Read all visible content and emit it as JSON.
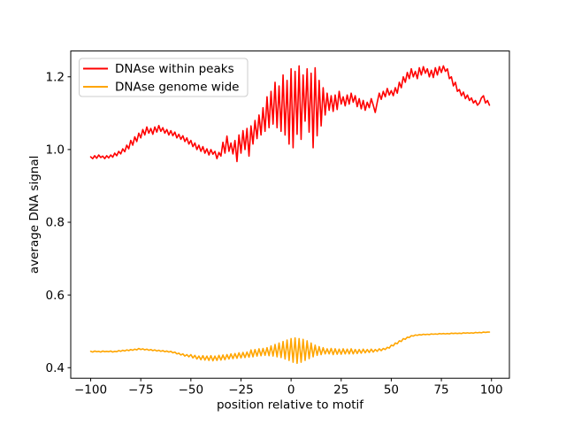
{
  "figure": {
    "background": "#ffffff"
  },
  "chart_data": {
    "type": "line",
    "title": "",
    "xlabel": "position relative to motif",
    "ylabel": "average DNA signal",
    "xlim": [
      -109.95,
      108.95
    ],
    "ylim": [
      0.371,
      1.271
    ],
    "grid": false,
    "xticks": [
      -100,
      -75,
      -50,
      -25,
      0,
      25,
      50,
      75,
      100
    ],
    "xtick_labels": [
      "−100",
      "−75",
      "−50",
      "−25",
      "0",
      "25",
      "50",
      "75",
      "100"
    ],
    "yticks": [
      0.4,
      0.6,
      0.8,
      1.0,
      1.2
    ],
    "ytick_labels": [
      "0.4",
      "0.6",
      "0.8",
      "1.0",
      "1.2"
    ],
    "legend": {
      "position": "upper-left",
      "border_color": "#cccccc",
      "background": "rgba(255,255,255,0.8)"
    },
    "x_start": -100,
    "x_step": 1,
    "series": [
      {
        "name": "DNAse within peaks",
        "color": "#ff0000",
        "values": [
          0.98,
          0.975,
          0.983,
          0.976,
          0.985,
          0.978,
          0.982,
          0.975,
          0.983,
          0.977,
          0.985,
          0.979,
          0.99,
          0.983,
          0.995,
          0.988,
          1.002,
          0.994,
          1.012,
          1.002,
          1.025,
          1.012,
          1.035,
          1.022,
          1.045,
          1.032,
          1.055,
          1.04,
          1.062,
          1.045,
          1.058,
          1.042,
          1.062,
          1.048,
          1.066,
          1.05,
          1.06,
          1.045,
          1.055,
          1.04,
          1.052,
          1.038,
          1.048,
          1.032,
          1.042,
          1.028,
          1.038,
          1.022,
          1.032,
          1.015,
          1.025,
          1.008,
          1.018,
          1.0,
          1.012,
          0.995,
          1.008,
          0.99,
          1.002,
          0.985,
          1.0,
          0.987,
          0.995,
          0.975,
          0.992,
          0.982,
          1.02,
          0.99,
          1.037,
          0.995,
          1.018,
          0.988,
          1.025,
          0.967,
          1.04,
          0.99,
          1.052,
          1.0,
          1.058,
          0.982,
          1.065,
          1.015,
          1.08,
          1.03,
          1.095,
          1.04,
          1.115,
          1.05,
          1.145,
          1.06,
          1.16,
          1.07,
          1.185,
          1.06,
          1.175,
          1.05,
          1.205,
          1.04,
          1.19,
          1.015,
          1.222,
          1.005,
          1.215,
          1.042,
          1.23,
          1.028,
          1.205,
          1.078,
          1.222,
          1.048,
          1.21,
          1.005,
          1.225,
          1.038,
          1.19,
          1.065,
          1.17,
          1.095,
          1.155,
          1.108,
          1.148,
          1.105,
          1.15,
          1.11,
          1.16,
          1.125,
          1.145,
          1.12,
          1.15,
          1.125,
          1.155,
          1.13,
          1.148,
          1.118,
          1.14,
          1.112,
          1.135,
          1.108,
          1.13,
          1.115,
          1.14,
          1.122,
          1.102,
          1.13,
          1.155,
          1.138,
          1.16,
          1.145,
          1.168,
          1.15,
          1.162,
          1.148,
          1.17,
          1.155,
          1.185,
          1.17,
          1.2,
          1.185,
          1.212,
          1.195,
          1.222,
          1.2,
          1.215,
          1.195,
          1.225,
          1.205,
          1.228,
          1.21,
          1.222,
          1.2,
          1.218,
          1.198,
          1.225,
          1.205,
          1.228,
          1.212,
          1.23,
          1.215,
          1.222,
          1.195,
          1.2,
          1.175,
          1.185,
          1.16,
          1.165,
          1.148,
          1.158,
          1.14,
          1.15,
          1.135,
          1.142,
          1.128,
          1.135,
          1.122,
          1.128,
          1.142,
          1.148,
          1.128,
          1.135,
          1.122
        ]
      },
      {
        "name": "DNAse genome wide",
        "color": "#ffa500",
        "values": [
          0.445,
          0.443,
          0.446,
          0.444,
          0.445,
          0.443,
          0.446,
          0.444,
          0.445,
          0.444,
          0.446,
          0.443,
          0.445,
          0.444,
          0.447,
          0.445,
          0.448,
          0.446,
          0.449,
          0.447,
          0.45,
          0.448,
          0.451,
          0.449,
          0.453,
          0.45,
          0.452,
          0.449,
          0.451,
          0.448,
          0.45,
          0.447,
          0.449,
          0.446,
          0.448,
          0.445,
          0.447,
          0.444,
          0.446,
          0.443,
          0.445,
          0.441,
          0.443,
          0.438,
          0.44,
          0.435,
          0.438,
          0.432,
          0.436,
          0.43,
          0.436,
          0.427,
          0.434,
          0.424,
          0.432,
          0.422,
          0.433,
          0.421,
          0.432,
          0.42,
          0.433,
          0.419,
          0.432,
          0.42,
          0.434,
          0.421,
          0.435,
          0.422,
          0.436,
          0.424,
          0.438,
          0.425,
          0.439,
          0.426,
          0.441,
          0.427,
          0.442,
          0.428,
          0.443,
          0.429,
          0.449,
          0.43,
          0.45,
          0.432,
          0.452,
          0.433,
          0.453,
          0.434,
          0.455,
          0.433,
          0.46,
          0.432,
          0.464,
          0.43,
          0.468,
          0.428,
          0.472,
          0.424,
          0.476,
          0.42,
          0.48,
          0.415,
          0.482,
          0.412,
          0.48,
          0.415,
          0.478,
          0.42,
          0.474,
          0.425,
          0.468,
          0.43,
          0.462,
          0.434,
          0.458,
          0.436,
          0.455,
          0.438,
          0.452,
          0.438,
          0.453,
          0.436,
          0.452,
          0.437,
          0.451,
          0.437,
          0.452,
          0.438,
          0.451,
          0.438,
          0.452,
          0.438,
          0.45,
          0.439,
          0.45,
          0.44,
          0.451,
          0.441,
          0.45,
          0.442,
          0.451,
          0.443,
          0.45,
          0.445,
          0.452,
          0.447,
          0.453,
          0.45,
          0.456,
          0.454,
          0.462,
          0.46,
          0.468,
          0.466,
          0.474,
          0.472,
          0.48,
          0.478,
          0.484,
          0.483,
          0.488,
          0.487,
          0.49,
          0.489,
          0.491,
          0.49,
          0.492,
          0.491,
          0.492,
          0.491,
          0.493,
          0.492,
          0.493,
          0.492,
          0.494,
          0.493,
          0.494,
          0.493,
          0.494,
          0.493,
          0.495,
          0.494,
          0.495,
          0.494,
          0.495,
          0.494,
          0.496,
          0.495,
          0.496,
          0.495,
          0.496,
          0.495,
          0.497,
          0.496,
          0.497,
          0.496,
          0.498,
          0.497,
          0.498,
          0.498
        ]
      }
    ]
  }
}
